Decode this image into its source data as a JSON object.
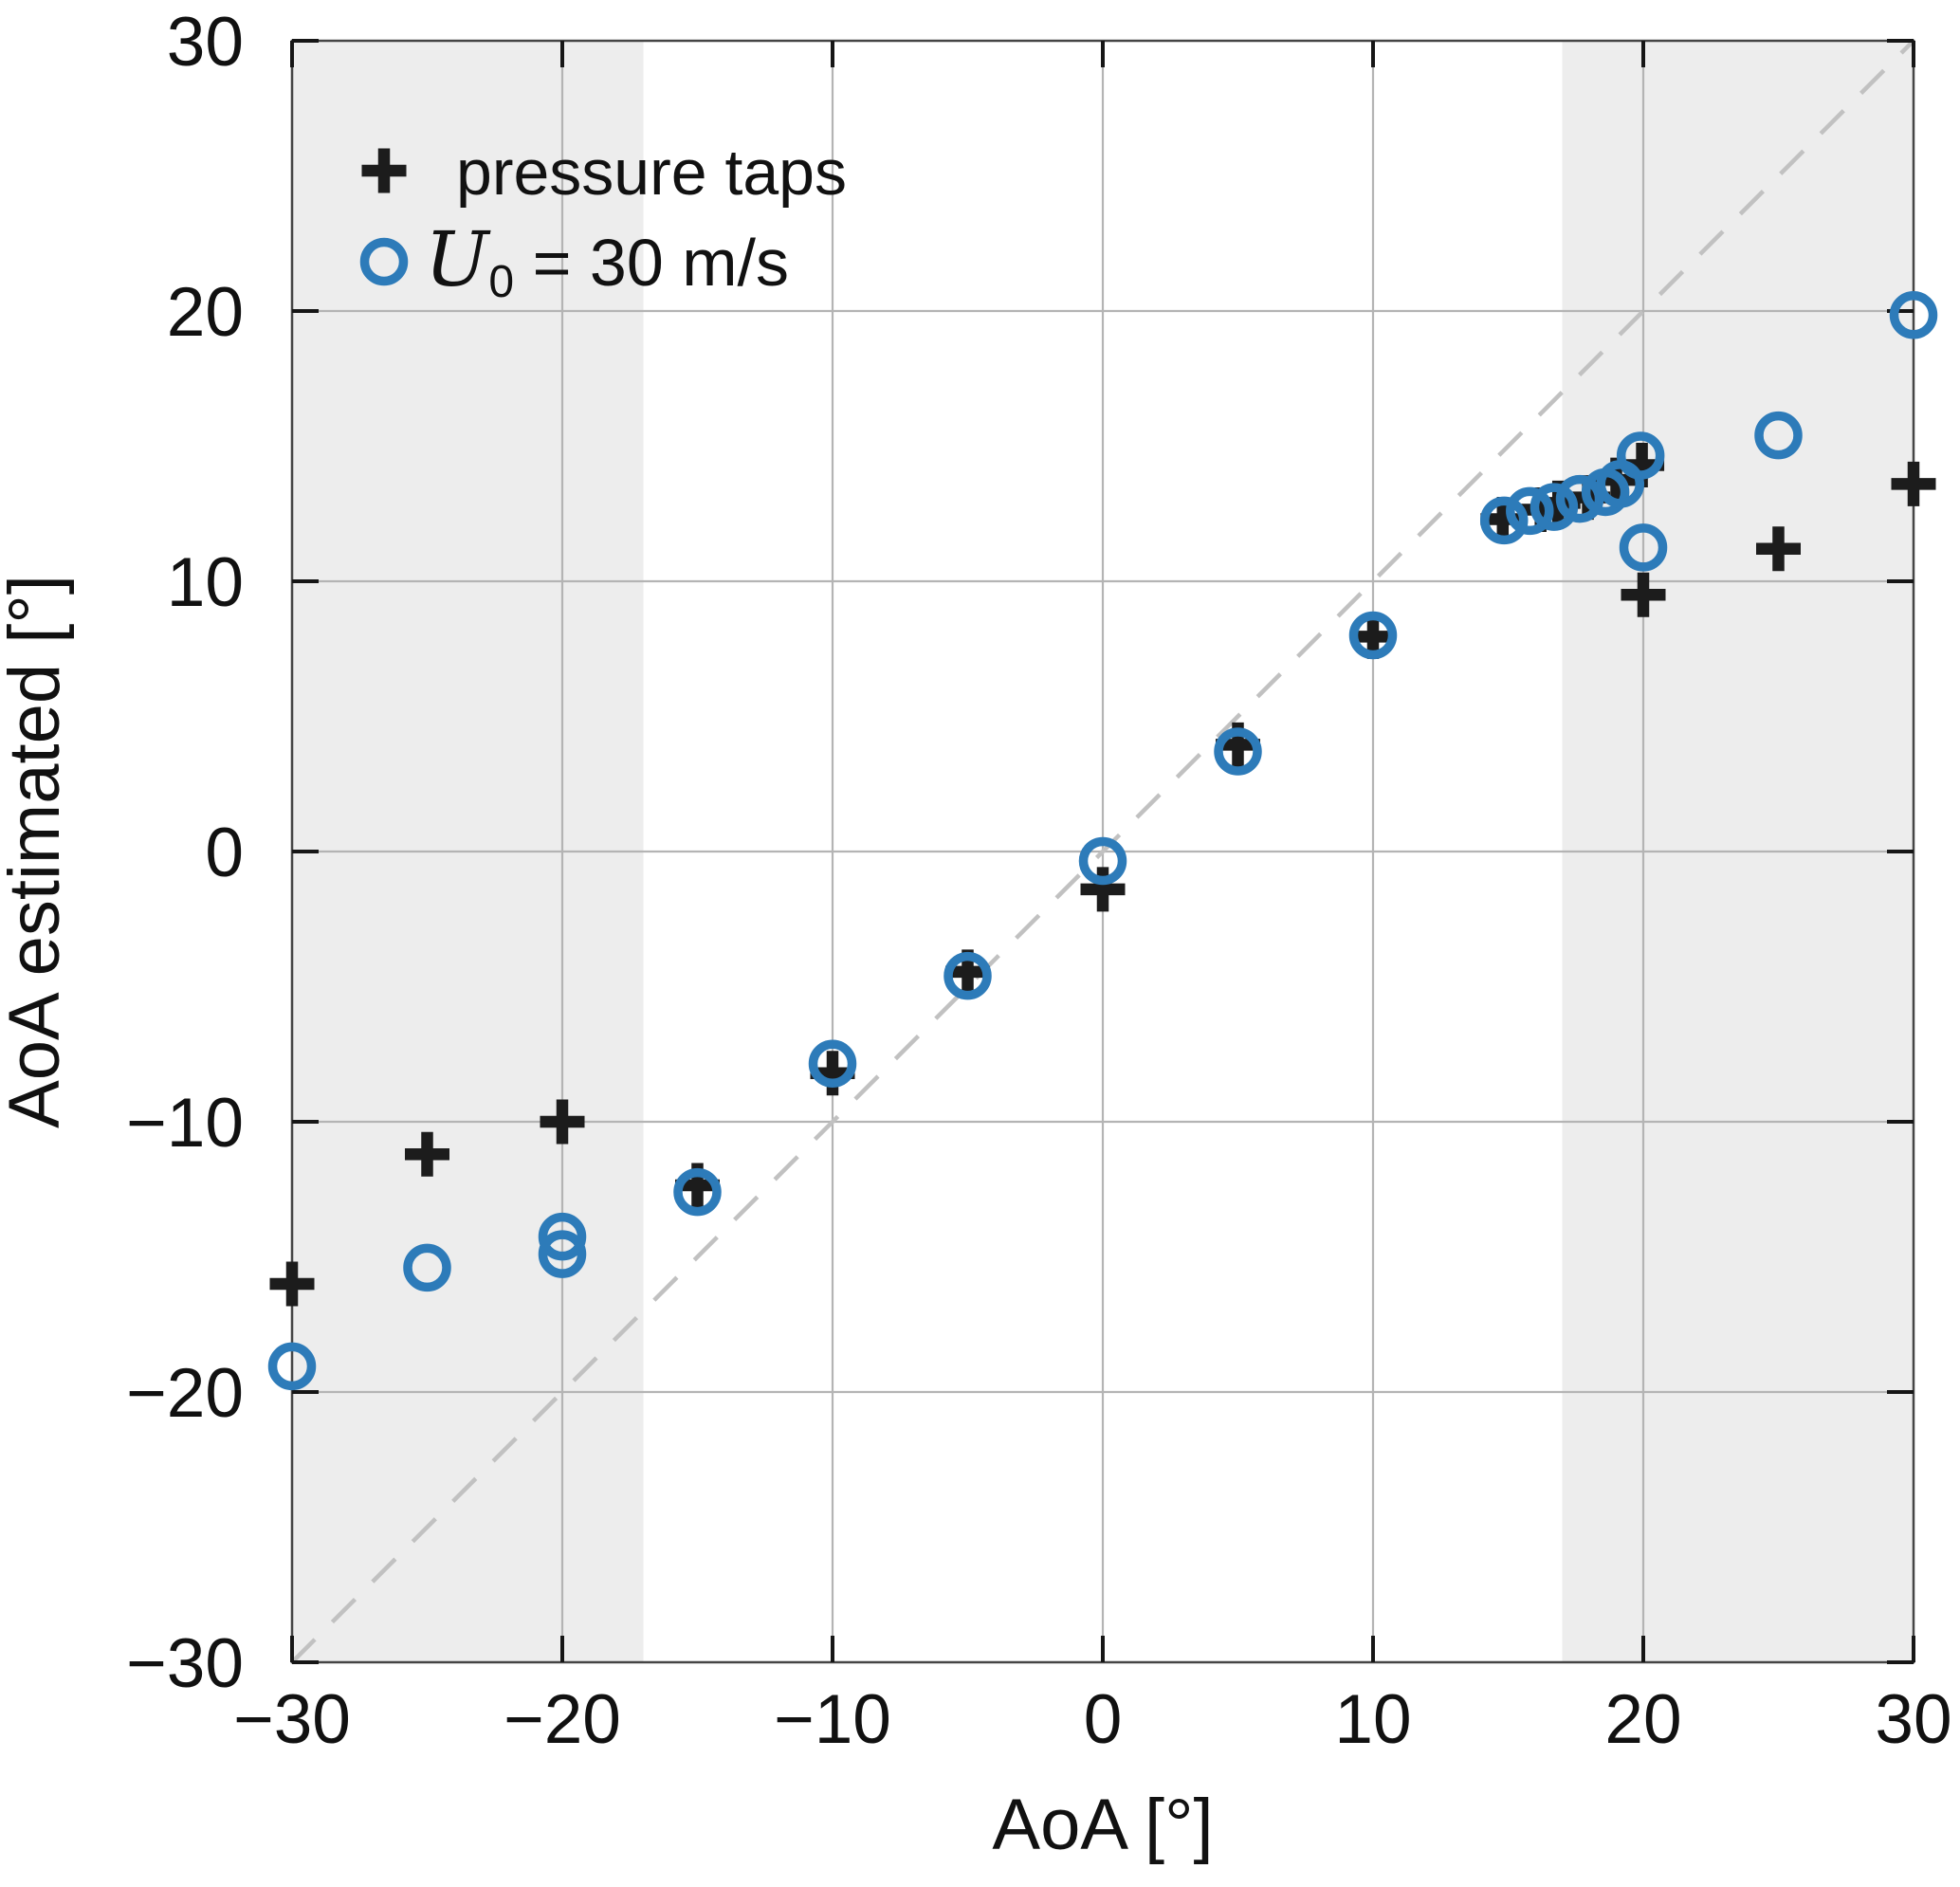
{
  "figure": {
    "background": "#ffffff"
  },
  "chart_data": {
    "type": "scatter",
    "title": "",
    "xlabel": "AoA [°]",
    "ylabel": "AoA estimated [°]",
    "xlim": [
      -30,
      30
    ],
    "ylim": [
      -30,
      30
    ],
    "xticks": [
      -30,
      -20,
      -10,
      0,
      10,
      20,
      30
    ],
    "yticks": [
      -30,
      -20,
      -10,
      0,
      10,
      20,
      30
    ],
    "xtick_labels": [
      "−30",
      "−20",
      "−10",
      "0",
      "10",
      "20",
      "30"
    ],
    "ytick_labels": [
      "−30",
      "−20",
      "−10",
      "0",
      "10",
      "20",
      "30"
    ],
    "grid": true,
    "legend_position": "top-left",
    "identity_line": {
      "from": [
        -30,
        -30
      ],
      "to": [
        30,
        30
      ],
      "style": "dashed"
    },
    "shaded_bands": [
      {
        "x0": -30,
        "x1": -17
      },
      {
        "x0": 17,
        "x1": 30
      }
    ],
    "colors": {
      "band": "#ededed",
      "grid": "#b4b4b4",
      "axis_box": "#454545",
      "tick": "#161616",
      "dashed_line": "#c1c1c1",
      "series_black": "#1c1c1c",
      "series_blue": "#2d7bb9"
    },
    "series": [
      {
        "name": "pressure taps",
        "marker": "plus",
        "color": "#1c1c1c",
        "points": [
          [
            -30,
            -16.0
          ],
          [
            -25,
            -11.2
          ],
          [
            -20,
            -10.0
          ],
          [
            -15,
            -12.35
          ],
          [
            -10,
            -8.2
          ],
          [
            -5,
            -4.45
          ],
          [
            0,
            -1.4
          ],
          [
            5,
            3.95
          ],
          [
            10,
            7.95
          ],
          [
            14.8,
            12.3
          ],
          [
            16.2,
            12.65
          ],
          [
            16.85,
            12.9
          ],
          [
            17.95,
            13.1
          ],
          [
            19.0,
            13.75
          ],
          [
            19.95,
            14.3
          ],
          [
            20,
            9.5
          ],
          [
            25,
            11.2
          ],
          [
            30,
            13.6
          ]
        ]
      },
      {
        "name": "U₀ = 30 m/s",
        "name_parts": {
          "symbol": "U",
          "subscript": "0",
          "rest": " = 30 m/s"
        },
        "marker": "circle",
        "color": "#2d7bb9",
        "points": [
          [
            -30,
            -19.05
          ],
          [
            -25,
            -15.4
          ],
          [
            -20,
            -14.25
          ],
          [
            -20,
            -14.9
          ],
          [
            -15,
            -12.6
          ],
          [
            -10,
            -7.85
          ],
          [
            -5,
            -4.6
          ],
          [
            0,
            -0.35
          ],
          [
            5,
            3.7
          ],
          [
            10,
            8.0
          ],
          [
            14.85,
            12.25
          ],
          [
            15.8,
            12.6
          ],
          [
            16.7,
            12.75
          ],
          [
            17.65,
            13.05
          ],
          [
            18.6,
            13.3
          ],
          [
            19.15,
            13.6
          ],
          [
            19.9,
            14.65
          ],
          [
            20,
            11.25
          ],
          [
            25,
            15.4
          ],
          [
            30,
            19.85
          ]
        ]
      }
    ]
  }
}
